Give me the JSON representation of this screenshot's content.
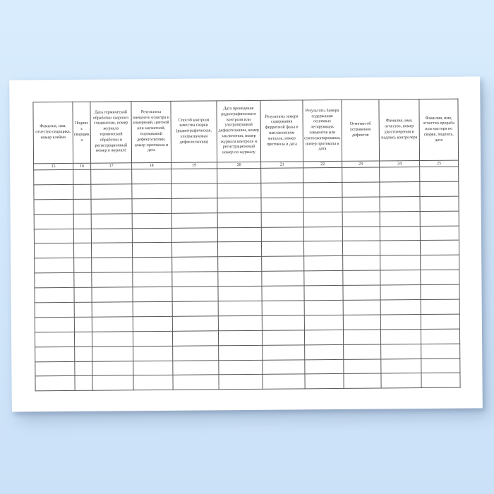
{
  "document": {
    "kind": "welding-log-form-continuation-sheet",
    "paper_color": "#ffffff",
    "background_color_top": "#d8ecfd",
    "background_color_bottom": "#cbe1f7",
    "grid_line_color": "#585858",
    "text_color": "#2b2b2b"
  },
  "table": {
    "columns": [
      {
        "number": "15",
        "header": "Фамилия, имя, отчество сварщика, номер клейма"
      },
      {
        "number": "16",
        "header": "Подпись сварщика"
      },
      {
        "number": "17",
        "header": "Дата термической обработки сварного соединения, номер журнала термической обработки и регистрационный номер в журнале"
      },
      {
        "number": "18",
        "header": "Результаты внешнего осмотра и измерений, цветной или магнитной, порошковой дефектоскопии, номер протокола и дата"
      },
      {
        "number": "19",
        "header": "Способ контроля качества сварки (радиографическая, ультразвуковая дефектоскопия)"
      },
      {
        "number": "20",
        "header": "Дата проведения радиографического контроля или ультразвуковой дефектоскопии, номер заключения, номер журнала контроля и регистрационный номер по журналу"
      },
      {
        "number": "21",
        "header": "Результаты замера содержания ферритной фазы в наплавленном металле, номер протокола и дата"
      },
      {
        "number": "22",
        "header": "Результаты Замера содержания основных легирующих элементов или стилоскопирования, номер протокола и дата"
      },
      {
        "number": "23",
        "header": "Отметки об устранении дефектов"
      },
      {
        "number": "24",
        "header": "Фамилия, имя, отчество, номер удостоверения и подпись контролера"
      },
      {
        "number": "25",
        "header": "Фамилия, имя, отчество прораба или мастера по сварке, подпись, дата"
      }
    ],
    "body_rows": 15,
    "cell_values": []
  }
}
